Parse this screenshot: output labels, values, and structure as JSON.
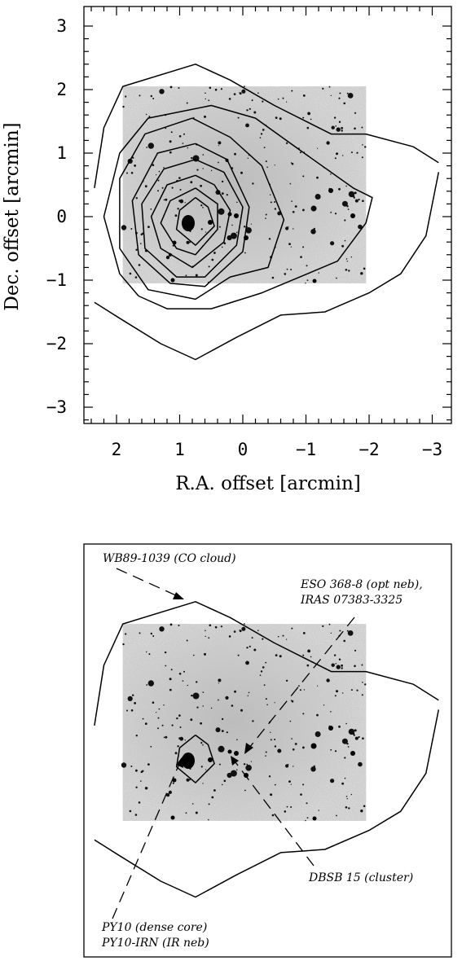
{
  "top_panel": {
    "xlabel": "R.A. offset [arcmin]",
    "ylabel": "Dec. offset [arcmin]"
  },
  "bottom_panel": {
    "annotations": {
      "wb89": "WB89-1039 (CO cloud)",
      "eso_line1": "ESO 368-8 (opt neb),",
      "eso_line2": "IRAS 07383-3325",
      "dbsb": "DBSB 15 (cluster)",
      "py10_line1": "PY10 (dense core)",
      "py10_line2": "PY10-IRN (IR neb)"
    }
  },
  "chart_data": {
    "type": "contour",
    "xlabel": "R.A. offset [arcmin]",
    "ylabel": "Dec. offset [arcmin]",
    "xlim": [
      2.5,
      -3.2
    ],
    "ylim": [
      -3.3,
      3.3
    ],
    "x_ticks": [
      2,
      1,
      0,
      -1,
      -2,
      -3
    ],
    "x_tick_labels": [
      "2",
      "1",
      "0",
      "−1",
      "−2",
      "−3"
    ],
    "y_ticks": [
      3,
      2,
      1,
      0,
      -1,
      -2,
      -3
    ],
    "y_tick_labels": [
      "3",
      "2",
      "1",
      "0",
      "−1",
      "−2",
      "−3"
    ],
    "image_extent": {
      "ra": [
        1.9,
        -1.95
      ],
      "dec": [
        -1.05,
        2.05
      ]
    },
    "contours": [
      [
        [
          2.35,
          0.45
        ],
        [
          2.2,
          1.4
        ],
        [
          1.9,
          2.05
        ],
        [
          0.75,
          2.4
        ],
        [
          0.2,
          2.15
        ],
        [
          -0.5,
          1.75
        ],
        [
          -1.4,
          1.3
        ],
        [
          -1.95,
          1.3
        ],
        [
          -2.7,
          1.1
        ],
        [
          -3.1,
          0.85
        ]
      ],
      [
        [
          -3.1,
          0.7
        ],
        [
          -2.9,
          -0.3
        ],
        [
          -2.5,
          -0.9
        ],
        [
          -2.0,
          -1.2
        ],
        [
          -1.3,
          -1.5
        ],
        [
          -0.6,
          -1.55
        ],
        [
          0.1,
          -1.9
        ],
        [
          0.75,
          -2.25
        ],
        [
          1.3,
          -2.0
        ],
        [
          1.95,
          -1.6
        ],
        [
          2.35,
          -1.35
        ]
      ],
      [
        [
          1.65,
          -1.25
        ],
        [
          1.95,
          -0.9
        ],
        [
          2.2,
          0.0
        ],
        [
          1.95,
          1.0
        ],
        [
          1.5,
          1.55
        ],
        [
          0.5,
          1.75
        ],
        [
          -0.2,
          1.55
        ],
        [
          -0.9,
          1.05
        ],
        [
          -1.75,
          0.45
        ],
        [
          -2.05,
          0.3
        ],
        [
          -1.95,
          -0.1
        ],
        [
          -1.5,
          -0.7
        ],
        [
          -0.3,
          -1.2
        ],
        [
          0.5,
          -1.45
        ],
        [
          1.2,
          -1.45
        ],
        [
          1.65,
          -1.25
        ]
      ],
      [
        [
          0.8,
          1.55
        ],
        [
          1.55,
          1.3
        ],
        [
          1.95,
          0.6
        ],
        [
          1.95,
          -0.5
        ],
        [
          1.5,
          -1.15
        ],
        [
          0.75,
          -1.3
        ],
        [
          0.2,
          -0.95
        ],
        [
          -0.4,
          -0.8
        ],
        [
          -0.65,
          -0.05
        ],
        [
          -0.3,
          0.8
        ],
        [
          0.2,
          1.25
        ],
        [
          0.8,
          1.55
        ]
      ],
      [
        [
          0.75,
          1.15
        ],
        [
          1.35,
          1.0
        ],
        [
          1.75,
          0.25
        ],
        [
          1.65,
          -0.6
        ],
        [
          1.15,
          -1.05
        ],
        [
          0.6,
          -1.1
        ],
        [
          0.0,
          -0.55
        ],
        [
          -0.1,
          0.15
        ],
        [
          0.25,
          0.9
        ],
        [
          0.75,
          1.15
        ]
      ],
      [
        [
          0.75,
          0.9
        ],
        [
          1.25,
          0.75
        ],
        [
          1.6,
          0.2
        ],
        [
          1.55,
          -0.5
        ],
        [
          1.05,
          -0.95
        ],
        [
          0.6,
          -0.95
        ],
        [
          0.1,
          -0.45
        ],
        [
          0.0,
          0.15
        ],
        [
          0.3,
          0.7
        ],
        [
          0.75,
          0.9
        ]
      ],
      [
        [
          0.75,
          0.65
        ],
        [
          1.2,
          0.5
        ],
        [
          1.45,
          0.0
        ],
        [
          1.3,
          -0.5
        ],
        [
          0.8,
          -0.8
        ],
        [
          0.3,
          -0.4
        ],
        [
          0.2,
          0.1
        ],
        [
          0.45,
          0.5
        ],
        [
          0.75,
          0.65
        ]
      ],
      [
        [
          0.75,
          0.45
        ],
        [
          1.15,
          0.25
        ],
        [
          1.3,
          -0.1
        ],
        [
          1.05,
          -0.5
        ],
        [
          0.75,
          -0.6
        ],
        [
          0.4,
          -0.2
        ],
        [
          0.4,
          0.2
        ],
        [
          0.75,
          0.45
        ]
      ],
      [
        [
          0.75,
          0.3
        ],
        [
          1.0,
          0.1
        ],
        [
          1.05,
          -0.2
        ],
        [
          0.75,
          -0.45
        ],
        [
          0.45,
          -0.15
        ],
        [
          0.55,
          0.15
        ],
        [
          0.75,
          0.3
        ]
      ]
    ]
  }
}
